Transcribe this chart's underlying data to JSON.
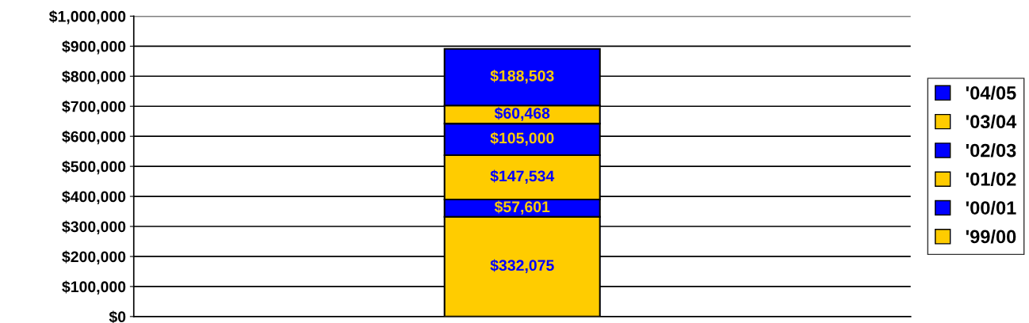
{
  "chart_data": {
    "type": "bar",
    "stacked": true,
    "categories": [
      null
    ],
    "series": [
      {
        "name": "'99/00",
        "color": "#ffcc00",
        "values": [
          332075
        ],
        "value_labels": [
          "$332,075"
        ]
      },
      {
        "name": "'00/01",
        "color": "#0000ff",
        "values": [
          57601
        ],
        "value_labels": [
          "$57,601"
        ]
      },
      {
        "name": "'01/02",
        "color": "#ffcc00",
        "values": [
          147534
        ],
        "value_labels": [
          "$147,534"
        ]
      },
      {
        "name": "'02/03",
        "color": "#0000ff",
        "values": [
          105000
        ],
        "value_labels": [
          "$105,000"
        ]
      },
      {
        "name": "'03/04",
        "color": "#ffcc00",
        "values": [
          60468
        ],
        "value_labels": [
          "$60,468"
        ]
      },
      {
        "name": "'04/05",
        "color": "#0000ff",
        "values": [
          188503
        ],
        "value_labels": [
          "$188,503"
        ]
      }
    ],
    "ylim": [
      0,
      1000000
    ],
    "yticks": [
      {
        "value": 0,
        "label": "$0"
      },
      {
        "value": 100000,
        "label": "$100,000"
      },
      {
        "value": 200000,
        "label": "$200,000"
      },
      {
        "value": 300000,
        "label": "$300,000"
      },
      {
        "value": 400000,
        "label": "$400,000"
      },
      {
        "value": 500000,
        "label": "$500,000"
      },
      {
        "value": 600000,
        "label": "$600,000"
      },
      {
        "value": 700000,
        "label": "$700,000"
      },
      {
        "value": 800000,
        "label": "$800,000"
      },
      {
        "value": 900000,
        "label": "$900,000"
      },
      {
        "value": 1000000,
        "label": "$1,000,000"
      }
    ],
    "grid": "y",
    "legend": "right"
  }
}
